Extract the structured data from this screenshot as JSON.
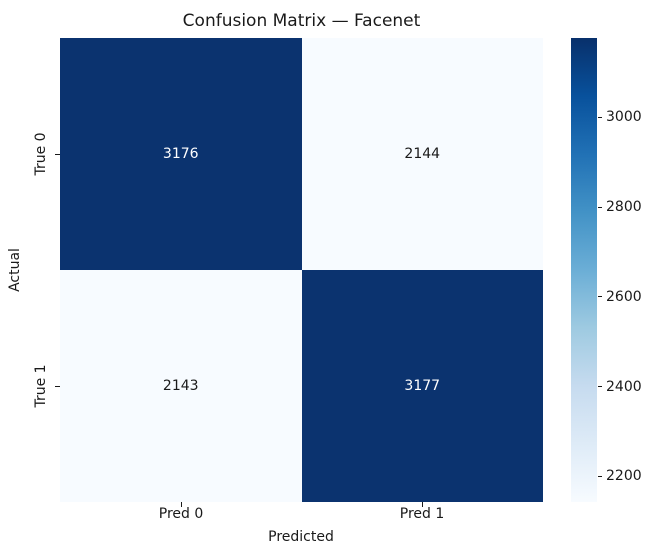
{
  "chart_data": {
    "type": "heatmap",
    "title": "Confusion Matrix — Facenet",
    "xlabel": "Predicted",
    "ylabel": "Actual",
    "x_ticklabels": [
      "Pred 0",
      "Pred 1"
    ],
    "y_ticklabels": [
      "True 0",
      "True 1"
    ],
    "matrix": [
      [
        3176,
        2144
      ],
      [
        2143,
        3177
      ]
    ],
    "vmin": 2143,
    "vmax": 3177,
    "colormap": "Blues",
    "grid": false,
    "legend_position": "right-colorbar",
    "colorbar": {
      "ticks": [
        3000,
        2800,
        2600,
        2400,
        2200
      ]
    },
    "palette": {
      "cell_dark": "#0b336f",
      "cell_light": "#f7fbff",
      "annotation_on_dark": "#ffffff",
      "annotation_on_light": "#1a1a1a",
      "text": "#1a1a1a",
      "blues_gradient_top_to_bottom": [
        "#08306b",
        "#08519c",
        "#2171b5",
        "#4292c6",
        "#6baed6",
        "#9ecae1",
        "#c6dbef",
        "#deebf7",
        "#f7fbff"
      ]
    }
  }
}
